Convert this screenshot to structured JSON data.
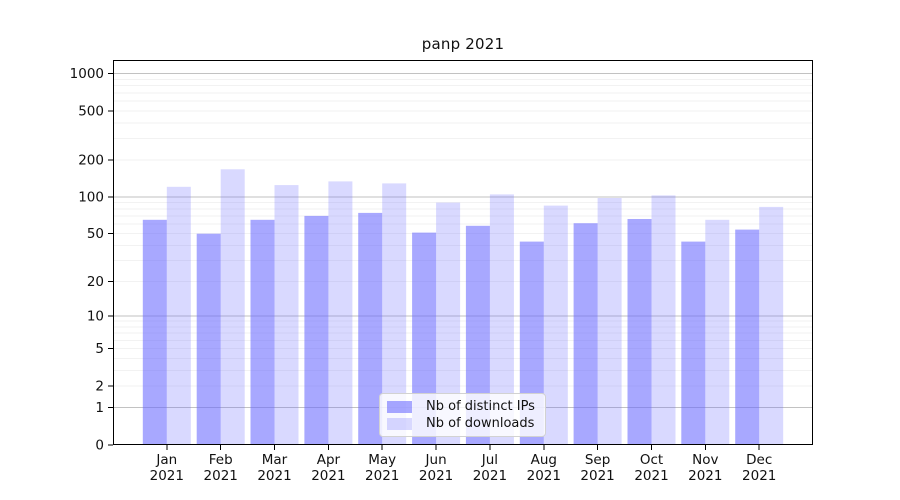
{
  "chart_data": {
    "type": "bar",
    "title": "panp 2021",
    "categories": [
      "Jan 2021",
      "Feb 2021",
      "Mar 2021",
      "Apr 2021",
      "May 2021",
      "Jun 2021",
      "Jul 2021",
      "Aug 2021",
      "Sep 2021",
      "Oct 2021",
      "Nov 2021",
      "Dec 2021"
    ],
    "series": [
      {
        "name": "Nb of distinct IPs",
        "color": "#6666ff",
        "alpha": 0.57,
        "values": [
          65,
          50,
          65,
          70,
          74,
          51,
          58,
          43,
          61,
          66,
          43,
          54
        ]
      },
      {
        "name": "Nb of downloads",
        "color": "#6666ff",
        "alpha": 0.25,
        "values": [
          121,
          168,
          125,
          134,
          129,
          90,
          105,
          85,
          98,
          103,
          65,
          83
        ]
      }
    ],
    "xlabel": "",
    "ylabel": "",
    "yscale": "symlog-log1p",
    "ylim": [
      0,
      1290
    ],
    "y_ticks": [
      1000,
      500,
      200,
      100,
      50,
      20,
      10,
      5,
      2,
      1,
      0
    ],
    "decade_gridlines": [
      1,
      10,
      100,
      1000
    ],
    "grid": "horizontal; faint minor log lines, darker decade lines",
    "legend_position": "inside-bottom-center",
    "colors": {
      "bar_dark_effective": "#a7a7f8",
      "bar_light_effective": "#d9d9ff",
      "gridline_minor": "#f2f2f2",
      "gridline_decade": "#c2c2c2",
      "axis": "#000000",
      "text": "#111111"
    }
  }
}
